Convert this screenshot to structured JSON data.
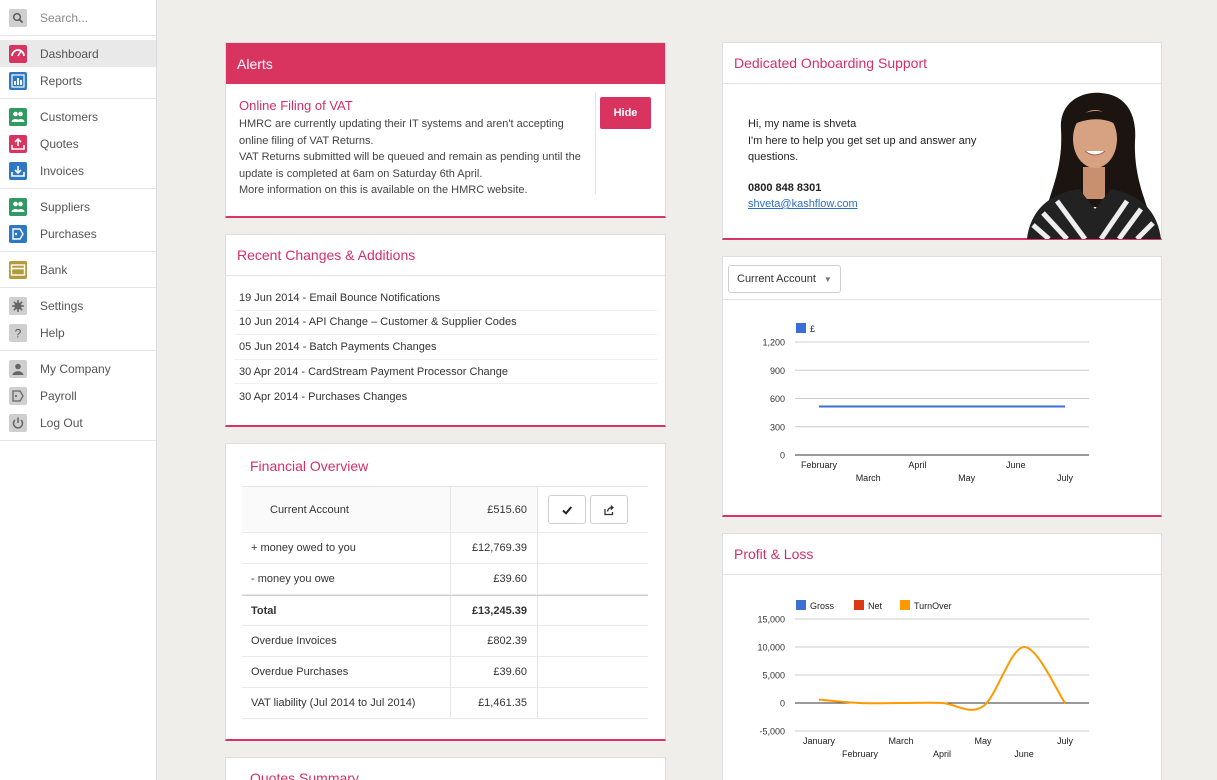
{
  "sidebar": {
    "search_placeholder": "Search...",
    "groups": [
      [
        {
          "label": "Dashboard",
          "icon": "dashboard-gauge-icon",
          "color": "#d8345f"
        },
        {
          "label": "Reports",
          "icon": "reports-chart-icon",
          "color": "#2e77c3"
        }
      ],
      [
        {
          "label": "Customers",
          "icon": "customers-people-icon",
          "color": "#2f9a62"
        },
        {
          "label": "Quotes",
          "icon": "quotes-upload-icon",
          "color": "#d8345f"
        },
        {
          "label": "Invoices",
          "icon": "invoices-upload-icon",
          "color": "#2e77c3"
        }
      ],
      [
        {
          "label": "Suppliers",
          "icon": "suppliers-people-icon",
          "color": "#2f9a62"
        },
        {
          "label": "Purchases",
          "icon": "purchases-tag-icon",
          "color": "#2e77c3"
        }
      ],
      [
        {
          "label": "Bank",
          "icon": "bank-card-icon",
          "color": "#b59a3c"
        }
      ],
      [
        {
          "label": "Settings",
          "icon": "settings-gear-icon",
          "color": "#cfcfcf"
        },
        {
          "label": "Help",
          "icon": "help-question-icon",
          "color": "#cfcfcf"
        }
      ],
      [
        {
          "label": "My Company",
          "icon": "company-person-icon",
          "color": "#cfcfcf"
        },
        {
          "label": "Payroll",
          "icon": "payroll-tag-icon",
          "color": "#cfcfcf"
        },
        {
          "label": "Log Out",
          "icon": "logout-power-icon",
          "color": "#cfcfcf"
        }
      ]
    ]
  },
  "alerts": {
    "header": "Alerts",
    "title": "Online Filing of VAT",
    "lines": [
      "HMRC are currently updating their IT systems and aren't accepting online filing of VAT Returns.",
      "VAT Returns submitted will be queued and remain as pending until the update is completed at 6am on Saturday 6th April.",
      "More information on this is available on the HMRC website."
    ],
    "hide_label": "Hide"
  },
  "changes": {
    "header": "Recent Changes & Additions",
    "items": [
      "19 Jun 2014 - Email Bounce Notifications",
      "10 Jun 2014 - API Change – Customer & Supplier Codes",
      "05 Jun 2014 - Batch Payments Changes",
      "30 Apr 2014 - CardStream Payment Processor Change",
      "30 Apr 2014 - Purchases Changes"
    ]
  },
  "financial": {
    "header": "Financial Overview",
    "rows": [
      {
        "label": "Current Account",
        "value": "£515.60"
      },
      {
        "label": "+ money owed to you",
        "value": "£12,769.39"
      },
      {
        "label": "- money you owe",
        "value": "£39.60"
      },
      {
        "label": "Total",
        "value": "£13,245.39"
      },
      {
        "label": "Overdue Invoices",
        "value": "£802.39"
      },
      {
        "label": "Overdue Purchases",
        "value": "£39.60"
      },
      {
        "label": "VAT liability (Jul 2014 to Jul 2014)",
        "value": "£1,461.35"
      }
    ]
  },
  "quotes_summary": {
    "header": "Quotes Summary"
  },
  "onboarding": {
    "header": "Dedicated Onboarding Support",
    "greeting": "Hi, my name is shveta",
    "message": "I'm here to help you get set up and answer any questions.",
    "phone": "0800 848 8301",
    "email": "shveta@kashflow.com"
  },
  "account_select": {
    "value": "Current Account"
  },
  "profit_loss": {
    "header": "Profit & Loss"
  },
  "chart_data": [
    {
      "type": "line",
      "title": "",
      "x": [
        "February",
        "March",
        "April",
        "May",
        "June",
        "July"
      ],
      "series": [
        {
          "name": "£",
          "color": "#3b6fd6",
          "values": [
            515.6,
            515.6,
            515.6,
            515.6,
            515.6,
            515.6
          ]
        }
      ],
      "yticks": [
        "0",
        "300",
        "600",
        "900",
        "1,200"
      ],
      "ylim": [
        0,
        1200
      ],
      "legend": "top-left",
      "grid": true
    },
    {
      "type": "line",
      "title": "",
      "x": [
        "January",
        "February",
        "March",
        "April",
        "May",
        "June",
        "July"
      ],
      "series": [
        {
          "name": "Gross",
          "color": "#3b6fd6",
          "values": [
            null,
            null,
            null,
            null,
            null,
            null,
            null
          ]
        },
        {
          "name": "Net",
          "color": "#dc3912",
          "values": [
            null,
            null,
            null,
            null,
            null,
            null,
            null
          ]
        },
        {
          "name": "TurnOver",
          "color": "#ff9900",
          "values": [
            600,
            0,
            0,
            0,
            -600,
            10000,
            0
          ]
        }
      ],
      "yticks": [
        "-5,000",
        "0",
        "5,000",
        "10,000",
        "15,000"
      ],
      "ylim": [
        -5000,
        15000
      ],
      "legend": "top",
      "grid": true
    }
  ]
}
